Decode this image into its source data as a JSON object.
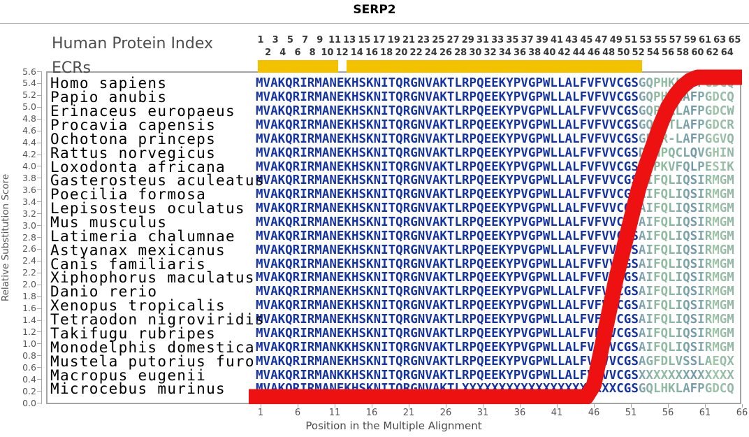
{
  "title": "SERP2",
  "y_axis": {
    "label": "Relative Substitution Score",
    "tick_labels": [
      "5.6",
      "5.4",
      "5.2",
      "5.0",
      "4.8",
      "4.6",
      "4.4",
      "4.2",
      "4.0",
      "3.8",
      "3.6",
      "3.4",
      "3.2",
      "3.0",
      "2.8",
      "2.6",
      "2.4",
      "2.2",
      "2.0",
      "1.8",
      "1.6",
      "1.4",
      "1.2",
      "1.0",
      "0.8",
      "0.6",
      "0.4",
      "0.2",
      "0.0"
    ]
  },
  "x_axis": {
    "label": "Position in the Multiple Alignment",
    "tick_values": [
      1,
      6,
      11,
      16,
      21,
      26,
      31,
      36,
      41,
      46,
      51,
      56,
      61,
      66
    ]
  },
  "header": {
    "human_protein_index_label": "Human Protein Index",
    "index_numbers_odd": [
      1,
      3,
      5,
      7,
      9,
      11,
      13,
      15,
      17,
      19,
      21,
      23,
      25,
      27,
      29,
      31,
      33,
      35,
      37,
      39,
      41,
      43,
      45,
      47,
      49,
      51,
      53,
      55,
      57,
      59,
      61,
      63,
      65
    ],
    "index_numbers_even": [
      2,
      4,
      6,
      8,
      10,
      12,
      14,
      16,
      18,
      20,
      22,
      24,
      26,
      28,
      30,
      32,
      34,
      36,
      38,
      40,
      42,
      44,
      46,
      48,
      50,
      52,
      54,
      56,
      58,
      60,
      62,
      64
    ]
  },
  "ecr_track": {
    "label": "ECRs",
    "color": "#F2C100",
    "regions": [
      {
        "start_position": 1,
        "end_position": 11
      },
      {
        "start_position": 13,
        "end_position": 52
      }
    ]
  },
  "alignment": {
    "sequence_color": "#1433A4",
    "variable_end_colors": [
      "#7B9CAE",
      "#93BF9F",
      "#86B2A4",
      "#6F96A9",
      "#9FC7A7"
    ],
    "rows": [
      {
        "species": "Homo sapiens",
        "sequence_1_52": "MVAKQRIRMANEKHSKNITQRGNVAKTLRPQEEKYPVGPWLLALFVFVVCGS",
        "sequence_53_65": "GQPHKLASPGDCQ"
      },
      {
        "species": "Papio anubis",
        "sequence_1_52": "MVAKQRIRMANEKHSKNITQRGNVAKTLRPQEEKYPVGPWLLALFVFVVCGS",
        "sequence_53_65": "GQPHKLAFPGDCQ"
      },
      {
        "species": "Erinaceus europaeus",
        "sequence_1_52": "MVAKQRIRMANEKHSKNITQRGNVAKTLRPQEEKYPVGPWLLALFVFVVCGS",
        "sequence_53_65": "GQPHKLAFPGDCW"
      },
      {
        "species": "Procavia capensis",
        "sequence_1_52": "MVAKQRIRMANEKHSKNITQRGNVAKTLRPQEEKYPVGPWLLALFVFVVCGS",
        "sequence_53_65": "GQLRTLAFPGDCR"
      },
      {
        "species": "Ochotona princeps",
        "sequence_1_52": "MVAKQRIRMANEKHSKNITQRGNVAKTLRPQEEKYPVGPWLLALFVFVVCGS",
        "sequence_53_65": "GPPR-LAFPGGVQ"
      },
      {
        "species": "Rattus norvegicus",
        "sequence_1_52": "MVAKQRIRMANEKHSKNITQRGNVAKTLRPQEEKYPVGPWLLALFVFVVCGS",
        "sequence_53_65": "DLNPQCLQVGHIN"
      },
      {
        "species": "Loxodonta africana",
        "sequence_1_52": "MVAKQRIRMANEKHSKNITQRGNVAKTLRPQEEKYPVGPWLLALFVFVVCGS",
        "sequence_53_65": "DSPKVFQLPESIK"
      },
      {
        "species": "Gasterosteus aculeatus",
        "sequence_1_52": "MVAKQRIRMANEKHSKNITQRGNVAKTLRPQEEKYPVGPWLLALFVFVVCGS",
        "sequence_53_65": "AIFQLIQSIRMGM"
      },
      {
        "species": "Poecilia formosa",
        "sequence_1_52": "MVAKQRIRMANEKHSKNITQRGNVAKTLRPQEEKYPVGPWLLALFVFVVCGS",
        "sequence_53_65": "AIFQLIQSIRMGM"
      },
      {
        "species": "Lepisosteus oculatus",
        "sequence_1_52": "MVAKQRIRMANEKHSKNITQRGNVAKTLRPQEEKYPVGPWLLALFVFVVCGS",
        "sequence_53_65": "AIFQLIQSIRMGM"
      },
      {
        "species": "Mus musculus",
        "sequence_1_52": "MVAKQRIRMANEKHSKNITQRGNVAKTLRPQEEKYPVGPWLLALFVFVVCGS",
        "sequence_53_65": "AIFQLIQSIRMGM"
      },
      {
        "species": "Latimeria chalumnae",
        "sequence_1_52": "MVAKQRIRMANEKHSKNITQRGNVAKTLRPQEEKYPVGPWLLALFVFVVCGS",
        "sequence_53_65": "AIFQLIQSIRMGM"
      },
      {
        "species": "Astyanax mexicanus",
        "sequence_1_52": "MVAKQRIRMANEKHSKNITQRGNVAKTLRPQEEKYPVGPWLLALFVFVVCGS",
        "sequence_53_65": "AIFQLIQSIRMGM"
      },
      {
        "species": "Canis familiaris",
        "sequence_1_52": "MVAKQRIRMANEKHSKNITQRGNVAKTLRPQEEKYPVGPWLLALFVFVVCGS",
        "sequence_53_65": "AIFQLIQSIRMGM"
      },
      {
        "species": "Xiphophorus maculatus",
        "sequence_1_52": "MVAKQRIRMANEKHSKNITQRGNVAKTLRPQEEKYPVGPWLLALFVFVVCGS",
        "sequence_53_65": "AIFQLIQSIRMGM"
      },
      {
        "species": "Danio rerio",
        "sequence_1_52": "MVAKQRIRMANEKHSKNITQRGNVAKTLRPQEEKYPVGPWLLALFVFVVCGS",
        "sequence_53_65": "AIFQLIQSIRMGM"
      },
      {
        "species": "Xenopus tropicalis",
        "sequence_1_52": "MVAKQRIRMANEKHSKNITQRGNVAKTLRPQEEKYPVGPWLLALFVFVVCGS",
        "sequence_53_65": "AIFQLIQSIRMGM"
      },
      {
        "species": "Tetraodon nigroviridis",
        "sequence_1_52": "MVAKQRIRMANEKHSKNITQRGNVAKTLRPQEEKYPVGPWLLALFVFVVCGS",
        "sequence_53_65": "AIFQLIQSIRMGM"
      },
      {
        "species": "Takifugu rubripes",
        "sequence_1_52": "MVAKQRIRMANEKHSKNITQRGNVAKTLRPQEEKYPVGPWLLALFVFVVCGS",
        "sequence_53_65": "AIFQLIQSIRMGM"
      },
      {
        "species": "Monodelphis domestica",
        "sequence_1_52": "MVAKQRIRMANKKHSKNITQRGNVAKTLRPQEEKYPVGPWLLALFVFVVCGS",
        "sequence_53_65": "AIFQLIQSIRMGM"
      },
      {
        "species": "Mustela putorius furo",
        "sequence_1_52": "MVAKQRIRMANEKHSKNITQRGNVAKTLRPQEEKYPVGPWLLALFVFVVCGS",
        "sequence_53_65": "AGFDLVSSLAEQX"
      },
      {
        "species": "Macropus eugenii",
        "sequence_1_52": "MVAKQRIRMANKKHSKNITQRGNVAKTLRPQEEKYPVGPWLLALFVFVVCGS",
        "sequence_53_65": "XXXXXXXXXXXXX"
      },
      {
        "species": "Microcebus murinus",
        "sequence_1_52": "MVAKQRIRMANEKHSKNITQRGNVAKTLXXXXXXXXXXXXXXXXXXXXXCGS",
        "sequence_53_65": "GQLHKLAFPGDCQ"
      }
    ]
  },
  "chart_data": {
    "type": "line",
    "title": "SERP2",
    "xlabel": "Position in the Multiple Alignment",
    "ylabel": "Relative Substitution Score",
    "xlim": [
      1,
      66
    ],
    "ylim": [
      0.0,
      5.6
    ],
    "x_ticks": [
      1,
      6,
      11,
      16,
      21,
      26,
      31,
      36,
      41,
      46,
      51,
      56,
      61,
      66
    ],
    "grid": false,
    "legend": false,
    "series": [
      {
        "name": "relative-substitution-score",
        "color": "#ED1111",
        "x": [
          1,
          2,
          3,
          4,
          5,
          6,
          7,
          8,
          9,
          10,
          11,
          12,
          13,
          14,
          15,
          16,
          17,
          18,
          19,
          20,
          21,
          22,
          23,
          24,
          25,
          26,
          27,
          28,
          29,
          30,
          31,
          32,
          33,
          34,
          35,
          36,
          37,
          38,
          39,
          40,
          41,
          42,
          43,
          44,
          45,
          46,
          47,
          48,
          49,
          50,
          51,
          52,
          53,
          54,
          55,
          56,
          57,
          58,
          59,
          60,
          61,
          62,
          63,
          64,
          65,
          66
        ],
        "values": [
          0.1,
          0.1,
          0.1,
          0.1,
          0.1,
          0.1,
          0.1,
          0.1,
          0.1,
          0.1,
          0.1,
          0.1,
          0.1,
          0.1,
          0.1,
          0.1,
          0.1,
          0.1,
          0.1,
          0.1,
          0.1,
          0.1,
          0.1,
          0.1,
          0.1,
          0.1,
          0.1,
          0.1,
          0.1,
          0.1,
          0.1,
          0.1,
          0.1,
          0.1,
          0.1,
          0.1,
          0.1,
          0.1,
          0.1,
          0.1,
          0.1,
          0.1,
          0.1,
          0.1,
          0.1,
          0.3,
          0.9,
          1.5,
          2.1,
          2.6,
          3.1,
          3.6,
          4.0,
          4.35,
          4.7,
          5.0,
          5.2,
          5.35,
          5.45,
          5.5,
          5.5,
          5.5,
          5.5,
          5.5,
          5.5,
          5.5
        ]
      }
    ]
  }
}
